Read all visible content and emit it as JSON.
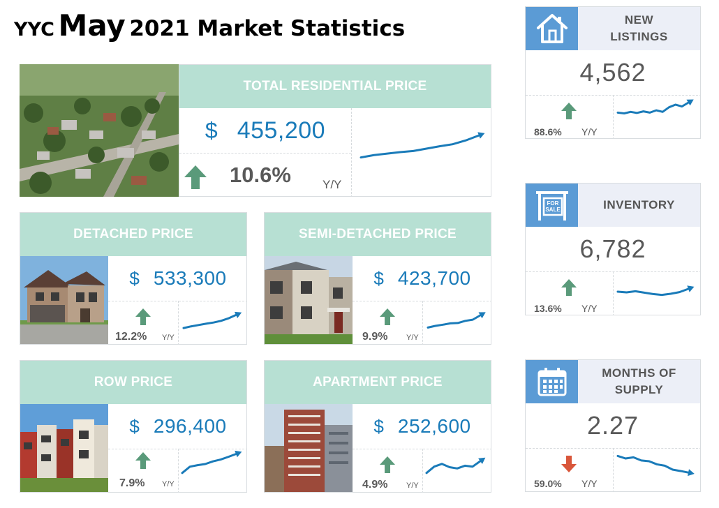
{
  "title": {
    "part1": "YYC",
    "month": "May",
    "part2": "2021 Market Statistics"
  },
  "colors": {
    "header_green": "#b7e0d3",
    "price_blue": "#1a7bb9",
    "up_arrow": "#5a9a7a",
    "down_arrow": "#d9563a",
    "side_icon_blue": "#5b9bd5",
    "side_header_bg": "#eceff7"
  },
  "total": {
    "label": "TOTAL RESIDENTIAL PRICE",
    "currency": "$",
    "value": "455,200",
    "change": "10.6%",
    "period": "Y/Y",
    "direction": "up",
    "trend": [
      0.2,
      0.28,
      0.33,
      0.38,
      0.42,
      0.5,
      0.58,
      0.65,
      0.78,
      0.95
    ],
    "photo": "aerial-neighbourhood-photo"
  },
  "detached": {
    "label": "DETACHED PRICE",
    "currency": "$",
    "value": "533,300",
    "change": "12.2%",
    "period": "Y/Y",
    "direction": "up",
    "trend": [
      0.12,
      0.22,
      0.3,
      0.38,
      0.45,
      0.55,
      0.7,
      0.9
    ],
    "photo": "detached-house-photo"
  },
  "semi": {
    "label": "SEMI-DETACHED PRICE",
    "currency": "$",
    "value": "423,700",
    "change": "9.9%",
    "period": "Y/Y",
    "direction": "up",
    "trend": [
      0.15,
      0.25,
      0.32,
      0.4,
      0.42,
      0.55,
      0.62,
      0.88
    ],
    "photo": "semi-detached-house-photo"
  },
  "row": {
    "label": "ROW PRICE",
    "currency": "$",
    "value": "296,400",
    "change": "7.9%",
    "period": "Y/Y",
    "direction": "up",
    "trend": [
      0.1,
      0.38,
      0.45,
      0.5,
      0.62,
      0.7,
      0.82,
      0.95
    ],
    "photo": "row-houses-photo"
  },
  "apartment": {
    "label": "APARTMENT PRICE",
    "currency": "$",
    "value": "252,600",
    "change": "4.9%",
    "period": "Y/Y",
    "direction": "up",
    "trend": [
      0.2,
      0.55,
      0.7,
      0.52,
      0.45,
      0.6,
      0.55,
      0.85
    ],
    "photo": "apartment-building-photo"
  },
  "new_listings": {
    "label_line1": "NEW",
    "label_line2": "LISTINGS",
    "value": "4,562",
    "change": "88.6%",
    "period": "Y/Y",
    "direction": "up",
    "icon": "house-icon",
    "trend": [
      0.3,
      0.25,
      0.35,
      0.28,
      0.38,
      0.3,
      0.45,
      0.35,
      0.65,
      0.82,
      0.7,
      0.95
    ]
  },
  "inventory": {
    "label": "INVENTORY",
    "value": "6,782",
    "change": "13.6%",
    "period": "Y/Y",
    "direction": "up",
    "icon": "for-sale-sign-icon",
    "icon_text_1": "FOR",
    "icon_text_2": "SALE",
    "trend": [
      0.75,
      0.7,
      0.78,
      0.68,
      0.58,
      0.52,
      0.6,
      0.72,
      0.95
    ]
  },
  "months_supply": {
    "label_line1": "MONTHS OF",
    "label_line2": "SUPPLY",
    "value": "2.27",
    "change": "59.0%",
    "period": "Y/Y",
    "direction": "down",
    "icon": "calendar-icon",
    "trend": [
      0.95,
      0.82,
      0.88,
      0.72,
      0.68,
      0.52,
      0.45,
      0.25,
      0.18,
      0.1
    ]
  }
}
